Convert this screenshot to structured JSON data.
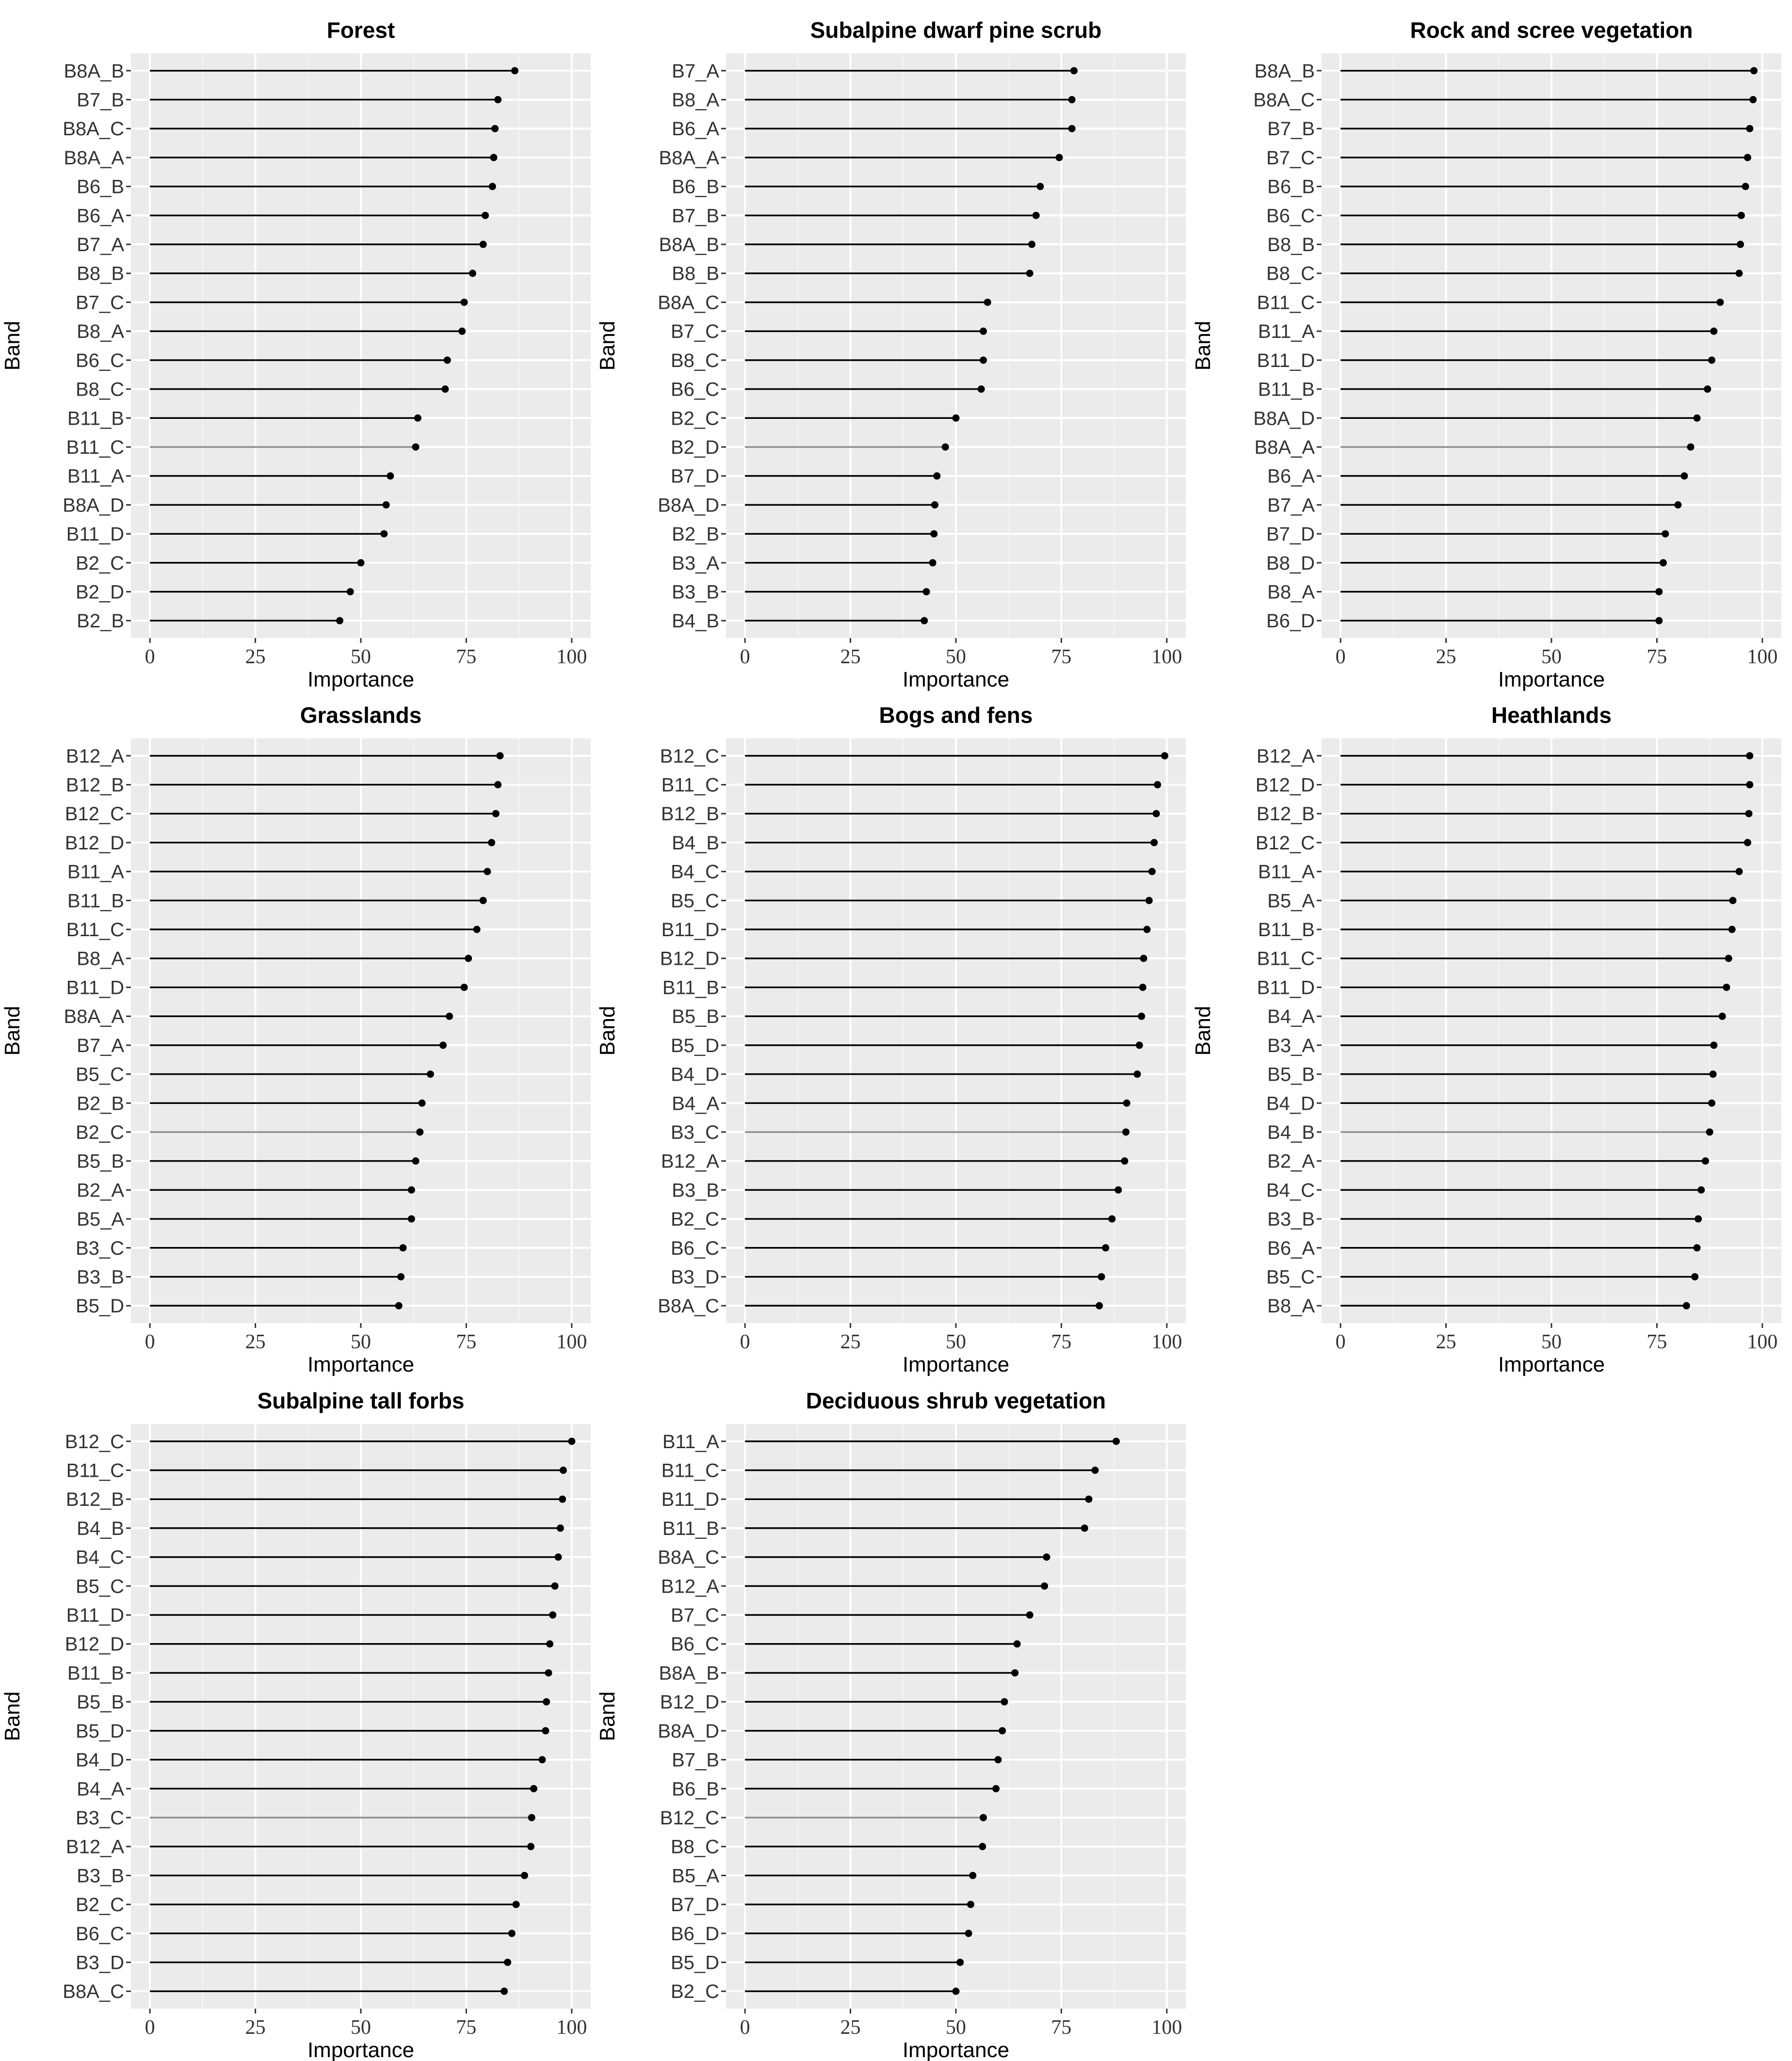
{
  "chart_data": [
    {
      "type": "lollipop",
      "title": "Forest",
      "xlabel": "Importance",
      "ylabel": "Band",
      "xlim": [
        0,
        100
      ],
      "xticks": [
        "0",
        "25",
        "50",
        "75",
        "100"
      ],
      "categories": [
        "B8A_B",
        "B7_B",
        "B8A_C",
        "B8A_A",
        "B6_B",
        "B6_A",
        "B7_A",
        "B8_B",
        "B7_C",
        "B8_A",
        "B6_C",
        "B8_C",
        "B11_B",
        "B11_C",
        "B11_A",
        "B8A_D",
        "B11_D",
        "B2_C",
        "B2_D",
        "B2_B"
      ],
      "values": [
        86.5,
        82.5,
        81.8,
        81.5,
        81.2,
        79.5,
        79.0,
        76.5,
        74.5,
        74.0,
        70.5,
        70.0,
        63.5,
        63.0,
        57.0,
        56.0,
        55.5,
        50.0,
        47.5,
        45.0
      ]
    },
    {
      "type": "lollipop",
      "title": "Subalpine dwarf pine scrub",
      "xlabel": "Importance",
      "ylabel": "Band",
      "xlim": [
        0,
        100
      ],
      "xticks": [
        "0",
        "25",
        "50",
        "75",
        "100"
      ],
      "categories": [
        "B7_A",
        "B8_A",
        "B6_A",
        "B8A_A",
        "B6_B",
        "B7_B",
        "B8A_B",
        "B8_B",
        "B8A_C",
        "B7_C",
        "B8_C",
        "B6_C",
        "B2_C",
        "B2_D",
        "B7_D",
        "B8A_D",
        "B2_B",
        "B3_A",
        "B3_B",
        "B4_B"
      ],
      "values": [
        78.0,
        77.5,
        77.5,
        74.5,
        70.0,
        69.0,
        68.0,
        67.5,
        57.5,
        56.5,
        56.5,
        56.0,
        50.0,
        47.5,
        45.5,
        45.0,
        44.8,
        44.5,
        43.0,
        42.5
      ]
    },
    {
      "type": "lollipop",
      "title": "Rock and scree vegetation",
      "xlabel": "Importance",
      "ylabel": "Band",
      "xlim": [
        0,
        100
      ],
      "xticks": [
        "0",
        "25",
        "50",
        "75",
        "100"
      ],
      "categories": [
        "B8A_B",
        "B8A_C",
        "B7_B",
        "B7_C",
        "B6_B",
        "B6_C",
        "B8_B",
        "B8_C",
        "B11_C",
        "B11_A",
        "B11_D",
        "B11_B",
        "B8A_D",
        "B8A_A",
        "B6_A",
        "B7_A",
        "B7_D",
        "B8_D",
        "B8_A",
        "B6_D"
      ],
      "values": [
        98.0,
        97.8,
        97.0,
        96.5,
        96.0,
        95.0,
        94.8,
        94.5,
        90.0,
        88.5,
        88.0,
        87.0,
        84.5,
        83.0,
        81.5,
        80.0,
        77.0,
        76.5,
        75.5,
        75.5
      ]
    },
    {
      "type": "lollipop",
      "title": "Grasslands",
      "xlabel": "Importance",
      "ylabel": "Band",
      "xlim": [
        0,
        100
      ],
      "xticks": [
        "0",
        "25",
        "50",
        "75",
        "100"
      ],
      "categories": [
        "B12_A",
        "B12_B",
        "B12_C",
        "B12_D",
        "B11_A",
        "B11_B",
        "B11_C",
        "B8_A",
        "B11_D",
        "B8A_A",
        "B7_A",
        "B5_C",
        "B2_B",
        "B2_C",
        "B5_B",
        "B2_A",
        "B5_A",
        "B3_C",
        "B3_B",
        "B5_D"
      ],
      "values": [
        83.0,
        82.5,
        82.0,
        81.0,
        80.0,
        79.0,
        77.5,
        75.5,
        74.5,
        71.0,
        69.5,
        66.5,
        64.5,
        64.0,
        63.0,
        62.0,
        62.0,
        60.0,
        59.5,
        59.0
      ]
    },
    {
      "type": "lollipop",
      "title": "Bogs and fens",
      "xlabel": "Importance",
      "ylabel": "Band",
      "xlim": [
        0,
        100
      ],
      "xticks": [
        "0",
        "25",
        "50",
        "75",
        "100"
      ],
      "categories": [
        "B12_C",
        "B11_C",
        "B12_B",
        "B4_B",
        "B4_C",
        "B5_C",
        "B11_D",
        "B12_D",
        "B11_B",
        "B5_B",
        "B5_D",
        "B4_D",
        "B4_A",
        "B3_C",
        "B12_A",
        "B3_B",
        "B2_C",
        "B6_C",
        "B3_D",
        "B8A_C"
      ],
      "values": [
        99.5,
        97.8,
        97.5,
        97.0,
        96.5,
        95.8,
        95.3,
        94.5,
        94.3,
        94.0,
        93.5,
        93.0,
        90.5,
        90.3,
        90.0,
        88.5,
        87.0,
        85.5,
        84.5,
        84.0
      ]
    },
    {
      "type": "lollipop",
      "title": "Heathlands",
      "xlabel": "Importance",
      "ylabel": "Band",
      "xlim": [
        0,
        100
      ],
      "xticks": [
        "0",
        "25",
        "50",
        "75",
        "100"
      ],
      "categories": [
        "B12_A",
        "B12_D",
        "B12_B",
        "B12_C",
        "B11_A",
        "B5_A",
        "B11_B",
        "B11_C",
        "B11_D",
        "B4_A",
        "B3_A",
        "B5_B",
        "B4_D",
        "B4_B",
        "B2_A",
        "B4_C",
        "B3_B",
        "B6_A",
        "B5_C",
        "B8_A"
      ],
      "values": [
        97.0,
        97.0,
        96.8,
        96.5,
        94.5,
        93.0,
        92.8,
        92.0,
        91.5,
        90.5,
        88.5,
        88.3,
        88.0,
        87.5,
        86.5,
        85.5,
        84.8,
        84.5,
        84.0,
        82.0
      ]
    },
    {
      "type": "lollipop",
      "title": "Subalpine tall forbs",
      "xlabel": "Importance",
      "ylabel": "Band",
      "xlim": [
        0,
        100
      ],
      "xticks": [
        "0",
        "25",
        "50",
        "75",
        "100"
      ],
      "categories": [
        "B12_C",
        "B11_C",
        "B12_B",
        "B4_B",
        "B4_C",
        "B5_C",
        "B11_D",
        "B12_D",
        "B11_B",
        "B5_B",
        "B5_D",
        "B4_D",
        "B4_A",
        "B3_C",
        "B12_A",
        "B3_B",
        "B2_C",
        "B6_C",
        "B3_D",
        "B8A_C"
      ],
      "values": [
        100.0,
        98.0,
        97.8,
        97.3,
        96.8,
        96.0,
        95.5,
        94.8,
        94.5,
        94.0,
        93.8,
        93.0,
        91.0,
        90.5,
        90.3,
        88.8,
        86.8,
        85.8,
        84.8,
        84.0
      ]
    },
    {
      "type": "lollipop",
      "title": "Deciduous shrub vegetation",
      "xlabel": "Importance",
      "ylabel": "Band",
      "xlim": [
        0,
        100
      ],
      "xticks": [
        "0",
        "25",
        "50",
        "75",
        "100"
      ],
      "categories": [
        "B11_A",
        "B11_C",
        "B11_D",
        "B11_B",
        "B8A_C",
        "B12_A",
        "B7_C",
        "B6_C",
        "B8A_B",
        "B12_D",
        "B8A_D",
        "B7_B",
        "B6_B",
        "B12_C",
        "B8_C",
        "B5_A",
        "B7_D",
        "B6_D",
        "B5_D",
        "B2_C"
      ],
      "values": [
        88.0,
        83.0,
        81.5,
        80.5,
        71.5,
        71.0,
        67.5,
        64.5,
        64.0,
        61.5,
        61.0,
        60.0,
        59.5,
        56.5,
        56.3,
        54.0,
        53.5,
        53.0,
        51.0,
        50.0
      ]
    }
  ],
  "colors": {
    "panel_bg": "#ebebeb",
    "grid_major": "#ffffff",
    "grid_minor": "#f5f5f5",
    "stem": "#000000",
    "stem_alt": "#8c8c8c",
    "point": "#000000"
  }
}
